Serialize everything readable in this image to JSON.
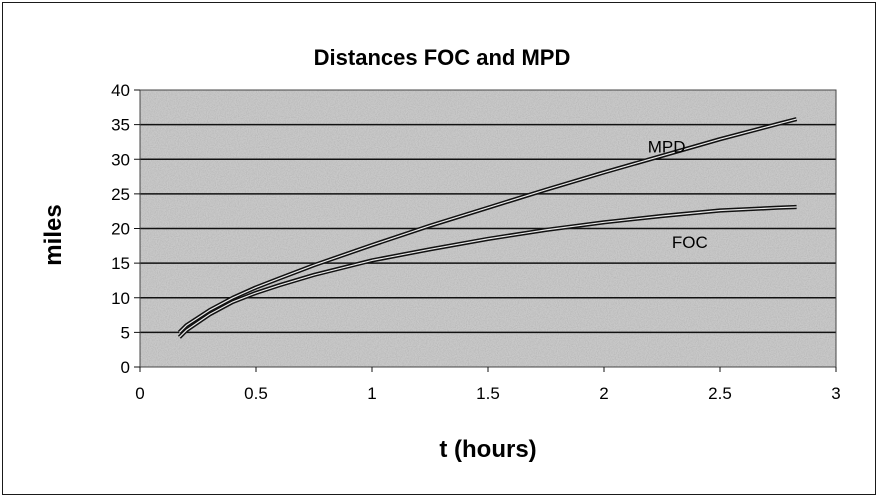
{
  "chart_data": {
    "type": "line",
    "title": "Distances FOC and MPD",
    "xlabel": "t (hours)",
    "ylabel": "miles",
    "xlim": [
      0,
      3
    ],
    "ylim": [
      0,
      40
    ],
    "xticks": [
      "0",
      "0.5",
      "1",
      "1.5",
      "2",
      "2.5",
      "3"
    ],
    "yticks": [
      "0",
      "5",
      "10",
      "15",
      "20",
      "25",
      "30",
      "35",
      "40"
    ],
    "grid": "horizontal",
    "legend": "none",
    "series": [
      {
        "name": "MPD",
        "color": "#111111",
        "x": [
          0.17,
          0.2,
          0.3,
          0.4,
          0.5,
          0.6,
          0.75,
          1.0,
          1.25,
          1.5,
          1.75,
          2.0,
          2.25,
          2.5,
          2.75,
          2.83
        ],
        "y": [
          5.0,
          6.0,
          8.2,
          10.0,
          11.5,
          12.8,
          14.7,
          17.6,
          20.4,
          23.0,
          25.6,
          28.1,
          30.5,
          32.9,
          35.1,
          35.8
        ]
      },
      {
        "name": "FOC",
        "color": "#111111",
        "x": [
          0.17,
          0.2,
          0.3,
          0.4,
          0.5,
          0.6,
          0.75,
          1.0,
          1.25,
          1.5,
          1.75,
          2.0,
          2.25,
          2.5,
          2.75,
          2.83
        ],
        "y": [
          4.3,
          5.3,
          7.6,
          9.4,
          10.7,
          11.8,
          13.3,
          15.4,
          17.0,
          18.5,
          19.8,
          20.9,
          21.8,
          22.6,
          23.0,
          23.1
        ]
      }
    ]
  }
}
